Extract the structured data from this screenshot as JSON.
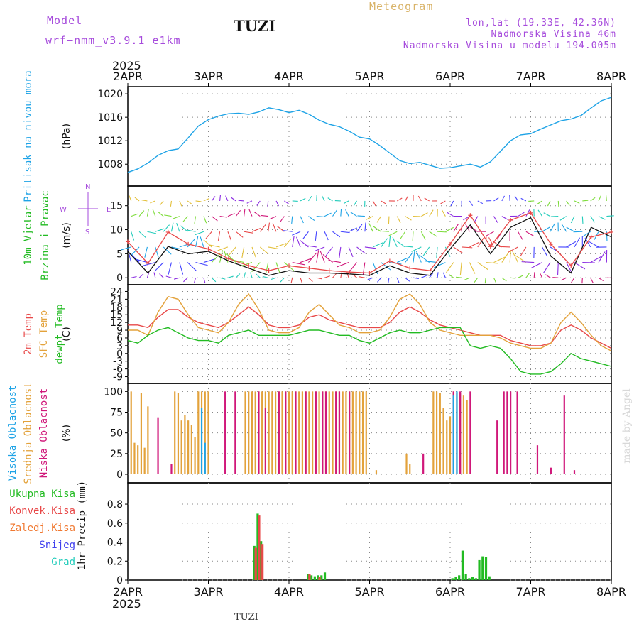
{
  "header": {
    "model_label": "Model",
    "model_name": "wrf−nmm_v3.9.1  e1km",
    "station": "TUZI",
    "title": "Meteogram",
    "coords": "lon,lat (19.33E, 42.36N)",
    "elevation": "Nadmorska Visina 46m",
    "model_elevation": "Nadmorska Visina u modelu 194.005m",
    "footer_station": "TUZI",
    "credit": "made by Angel"
  },
  "colors": {
    "purple": "#a64bdc",
    "pressure": "#1ea3e6",
    "green": "#22bb22",
    "red": "#e84848",
    "orange": "#e3a23b",
    "magenta": "#d0187a",
    "blue": "#4040ee",
    "cyan": "#22ccbb",
    "gold": "#d9b46a"
  },
  "chart_data": {
    "type": "line",
    "x_axis": {
      "top_year": "2025",
      "bottom_year": "2025",
      "ticks": [
        "2APR",
        "3APR",
        "4APR",
        "5APR",
        "6APR",
        "7APR",
        "8APR"
      ],
      "range_hours": [
        0,
        144
      ]
    },
    "panels": [
      {
        "id": "pressure",
        "labels": [
          {
            "text": "Pritisak na nivou mora",
            "color": "#1ea3e6"
          }
        ],
        "unit": "(hPa)",
        "ylim": [
          1005,
          1020.5
        ],
        "yticks": [
          "1008",
          "1012",
          "1016",
          "1020"
        ],
        "ytick_values": [
          1008,
          1012,
          1016,
          1020
        ],
        "series": [
          {
            "color": "#1ea3e6",
            "x": [
              0,
              3,
              6,
              9,
              12,
              15,
              18,
              21,
              24,
              27,
              30,
              33,
              36,
              39,
              42,
              45,
              48,
              51,
              54,
              57,
              60,
              63,
              66,
              69,
              72,
              75,
              78,
              81,
              84,
              87,
              90,
              93,
              96,
              99,
              102,
              105,
              108,
              111,
              114,
              117,
              120,
              123,
              126,
              129,
              132,
              135,
              138,
              141,
              144
            ],
            "y": [
              1006.6,
              1007.2,
              1008.2,
              1009.5,
              1010.3,
              1010.6,
              1012.5,
              1014.5,
              1015.6,
              1016.2,
              1016.6,
              1016.7,
              1016.5,
              1016.9,
              1017.6,
              1017.3,
              1016.8,
              1017.2,
              1016.5,
              1015.5,
              1014.8,
              1014.4,
              1013.6,
              1012.6,
              1012.3,
              1011.2,
              1009.9,
              1008.6,
              1008.1,
              1008.3,
              1007.8,
              1007.3,
              1007.4,
              1007.7,
              1008.0,
              1007.5,
              1008.4,
              1010.2,
              1012.0,
              1013.0,
              1013.2,
              1014.0,
              1014.7,
              1015.4,
              1015.7,
              1016.3,
              1017.6,
              1018.8,
              1019.4
            ]
          }
        ]
      },
      {
        "id": "wind",
        "labels": [
          {
            "text": "10m Vjetar",
            "color": "#22bb22"
          },
          {
            "text": "Brzina i Pravac",
            "color": "#22bb22"
          }
        ],
        "unit": "(m/s)",
        "ylim": [
          -1,
          18.5
        ],
        "yticks": [
          "0",
          "5",
          "10",
          "15"
        ],
        "ytick_values": [
          0,
          5,
          10,
          15
        ],
        "compass": {
          "n": "N",
          "s": "S",
          "e": "E",
          "w": "W"
        },
        "series": [
          {
            "name": "speed",
            "color": "#111111",
            "x": [
              0,
              6,
              12,
              18,
              24,
              30,
              36,
              42,
              48,
              54,
              60,
              66,
              72,
              78,
              84,
              90,
              96,
              102,
              108,
              114,
              120,
              126,
              132,
              138,
              144
            ],
            "y": [
              5.5,
              1.0,
              6.5,
              5.0,
              5.5,
              3.5,
              2.0,
              0.5,
              1.5,
              1.0,
              1.0,
              0.8,
              0.5,
              2.5,
              1.0,
              0.5,
              6.0,
              11.0,
              5.0,
              10.5,
              12.5,
              4.5,
              1.0,
              10.5,
              8.5
            ]
          },
          {
            "name": "gust",
            "color": "#e84848",
            "x": [
              0,
              6,
              12,
              18,
              24,
              30,
              36,
              42,
              48,
              54,
              60,
              66,
              72,
              78,
              84,
              90,
              96,
              102,
              108,
              114,
              120,
              126,
              132,
              138,
              144
            ],
            "y": [
              7.5,
              3.0,
              9.5,
              7.0,
              6.0,
              4.0,
              2.5,
              1.5,
              2.5,
              2.0,
              1.5,
              1.2,
              1.0,
              3.5,
              2.0,
              1.5,
              7.0,
              13.0,
              6.5,
              12.0,
              13.5,
              7.0,
              2.5,
              8.5,
              9.5
            ]
          }
        ]
      },
      {
        "id": "temperature",
        "labels": [
          {
            "text": "2m Temp",
            "color": "#e84848"
          },
          {
            "text": "SFC Temp",
            "color": "#e3a23b"
          },
          {
            "text": "dewpt Temp",
            "color": "#22bb22"
          }
        ],
        "unit": "(C)",
        "ylim": [
          -10.5,
          25.5
        ],
        "yticks": [
          "-9",
          "-6",
          "-3",
          "0",
          "3",
          "6",
          "9",
          "12",
          "15",
          "18",
          "21",
          "24"
        ],
        "ytick_values": [
          -9,
          -6,
          -3,
          0,
          3,
          6,
          9,
          12,
          15,
          18,
          21,
          24
        ],
        "series": [
          {
            "name": "2m Temp",
            "color": "#e84848",
            "x": [
              0,
              3,
              6,
              9,
              12,
              15,
              18,
              21,
              24,
              27,
              30,
              33,
              36,
              39,
              42,
              45,
              48,
              51,
              54,
              57,
              60,
              63,
              66,
              69,
              72,
              75,
              78,
              81,
              84,
              87,
              90,
              93,
              96,
              99,
              102,
              105,
              108,
              111,
              114,
              117,
              120,
              123,
              126,
              129,
              132,
              135,
              138,
              141,
              144
            ],
            "y": [
              11,
              11,
              10,
              14,
              17,
              17,
              14,
              12,
              11,
              10,
              12,
              15,
              18,
              15,
              11,
              10,
              10,
              11,
              14,
              15,
              13,
              12,
              11,
              10,
              10,
              10,
              12,
              16,
              18,
              16,
              13,
              11,
              10,
              9,
              8,
              7,
              7,
              7,
              5,
              4,
              3,
              3,
              4,
              9,
              11,
              9,
              6,
              4,
              2
            ]
          },
          {
            "name": "SFC Temp",
            "color": "#e3a23b",
            "x": [
              0,
              3,
              6,
              9,
              12,
              15,
              18,
              21,
              24,
              27,
              30,
              33,
              36,
              39,
              42,
              45,
              48,
              51,
              54,
              57,
              60,
              63,
              66,
              69,
              72,
              75,
              78,
              81,
              84,
              87,
              90,
              93,
              96,
              99,
              102,
              105,
              108,
              111,
              114,
              117,
              120,
              123,
              126,
              129,
              132,
              135,
              138,
              141,
              144
            ],
            "y": [
              9,
              9,
              7,
              16,
              22,
              21,
              15,
              10,
              9,
              8,
              12,
              19,
              23,
              17,
              9,
              8,
              8,
              10,
              16,
              19,
              15,
              11,
              10,
              8,
              8,
              9,
              14,
              21,
              23,
              19,
              12,
              9,
              8,
              7,
              7,
              7,
              7,
              6,
              4,
              3,
              2,
              2,
              4,
              12,
              16,
              12,
              7,
              3,
              1
            ]
          },
          {
            "name": "dewpt Temp",
            "color": "#22bb22",
            "x": [
              0,
              3,
              6,
              9,
              12,
              15,
              18,
              21,
              24,
              27,
              30,
              33,
              36,
              39,
              42,
              45,
              48,
              51,
              54,
              57,
              60,
              63,
              66,
              69,
              72,
              75,
              78,
              81,
              84,
              87,
              90,
              93,
              96,
              99,
              102,
              105,
              108,
              111,
              114,
              117,
              120,
              123,
              126,
              129,
              132,
              135,
              138,
              141,
              144
            ],
            "y": [
              5,
              4,
              7,
              9,
              10,
              8,
              6,
              5,
              5,
              4,
              7,
              8,
              9,
              7,
              7,
              7,
              7,
              8,
              9,
              9,
              8,
              7,
              7,
              5,
              4,
              6,
              8,
              9,
              8,
              8,
              9,
              10,
              10,
              10,
              3,
              2,
              3,
              2,
              -2,
              -7,
              -8,
              -8,
              -7,
              -4,
              0,
              -2,
              -3,
              -4,
              -5
            ]
          }
        ]
      },
      {
        "id": "cloud",
        "type": "bar",
        "labels": [
          {
            "text": "Visoka Oblacnost",
            "color": "#1ea3e6"
          },
          {
            "text": "Srednja Oblacnost",
            "color": "#e3a23b"
          },
          {
            "text": "Niska Oblacnost",
            "color": "#d0187a"
          }
        ],
        "unit": "(%)",
        "ylim": [
          0,
          102
        ],
        "yticks": [
          "0",
          "25",
          "50",
          "75",
          "100"
        ],
        "ytick_values": [
          0,
          25,
          50,
          75,
          100
        ],
        "series": [
          {
            "name": "Srednja Oblacnost",
            "color": "#e3a23b",
            "x": [
              1,
              2,
              3,
              4,
              5,
              6,
              14,
              15,
              16,
              17,
              18,
              19,
              20,
              21,
              22,
              23,
              24,
              35,
              36,
              37,
              38,
              39,
              40,
              41,
              42,
              43,
              44,
              45,
              46,
              47,
              48,
              49,
              50,
              51,
              52,
              53,
              54,
              55,
              56,
              57,
              58,
              59,
              60,
              61,
              62,
              63,
              64,
              65,
              66,
              67,
              68,
              69,
              70,
              71,
              74,
              83,
              84,
              91,
              92,
              93,
              94,
              95,
              96,
              97,
              98,
              99,
              100,
              101
            ],
            "y": [
              100,
              38,
              35,
              98,
              32,
              82,
              100,
              98,
              65,
              72,
              65,
              60,
              45,
              100,
              100,
              100,
              100,
              100,
              100,
              100,
              100,
              100,
              100,
              100,
              100,
              100,
              100,
              100,
              100,
              100,
              100,
              100,
              100,
              100,
              100,
              100,
              100,
              100,
              100,
              100,
              100,
              100,
              100,
              100,
              100,
              100,
              100,
              100,
              100,
              100,
              100,
              100,
              100,
              100,
              5,
              25,
              12,
              100,
              100,
              98,
              80,
              65,
              70,
              100,
              98,
              98,
              95,
              90
            ]
          },
          {
            "name": "Niska Oblacnost",
            "color": "#d0187a",
            "x": [
              9,
              13,
              29,
              32,
              39,
              41,
              45,
              47,
              50,
              53,
              56,
              58,
              59,
              62,
              63,
              66,
              88,
              97,
              99,
              102,
              110,
              112,
              113,
              114,
              116,
              122,
              126,
              130,
              133
            ],
            "y": [
              68,
              12,
              100,
              100,
              100,
              80,
              100,
              100,
              100,
              100,
              100,
              100,
              100,
              100,
              100,
              100,
              25,
              100,
              100,
              100,
              65,
              100,
              100,
              100,
              100,
              35,
              8,
              95,
              5
            ]
          },
          {
            "name": "Visoka Oblacnost",
            "color": "#1ea3e6",
            "x": [
              22,
              23,
              97,
              98
            ],
            "y": [
              80,
              38,
              95,
              100
            ]
          }
        ]
      },
      {
        "id": "precip",
        "type": "bar",
        "labels": [
          {
            "text": "Ukupna Kisa",
            "color": "#22bb22"
          },
          {
            "text": "Konvek.Kisa",
            "color": "#e84848"
          },
          {
            "text": "Zaledj.Kisa",
            "color": "#f07830"
          },
          {
            "text": "Snijeg",
            "color": "#4040ee"
          },
          {
            "text": "Grad",
            "color": "#22ccbb"
          }
        ],
        "unit": "1hr Precip (mm)",
        "ylim": [
          0,
          0.95
        ],
        "yticks": [
          "0",
          "0.2",
          "0.4",
          "0.6",
          "0.8"
        ],
        "ytick_values": [
          0,
          0.2,
          0.4,
          0.6,
          0.8
        ],
        "series": [
          {
            "name": "Ukupna Kisa",
            "color": "#22bb22",
            "x": [
              38,
              39,
              40,
              54,
              55,
              56,
              57,
              58,
              59,
              97,
              98,
              99,
              100,
              101,
              102,
              103,
              104,
              105,
              106,
              107,
              108
            ],
            "y": [
              0.36,
              0.7,
              0.41,
              0.06,
              0.05,
              0.04,
              0.05,
              0.05,
              0.08,
              0.02,
              0.03,
              0.05,
              0.31,
              0.06,
              0.02,
              0.03,
              0.02,
              0.21,
              0.25,
              0.24,
              0.04
            ]
          },
          {
            "name": "Konvek.Kisa",
            "color": "#e84848",
            "x": [
              38,
              39,
              40,
              54,
              57
            ],
            "y": [
              0.34,
              0.68,
              0.38,
              0.06,
              0.03
            ]
          }
        ]
      }
    ]
  }
}
